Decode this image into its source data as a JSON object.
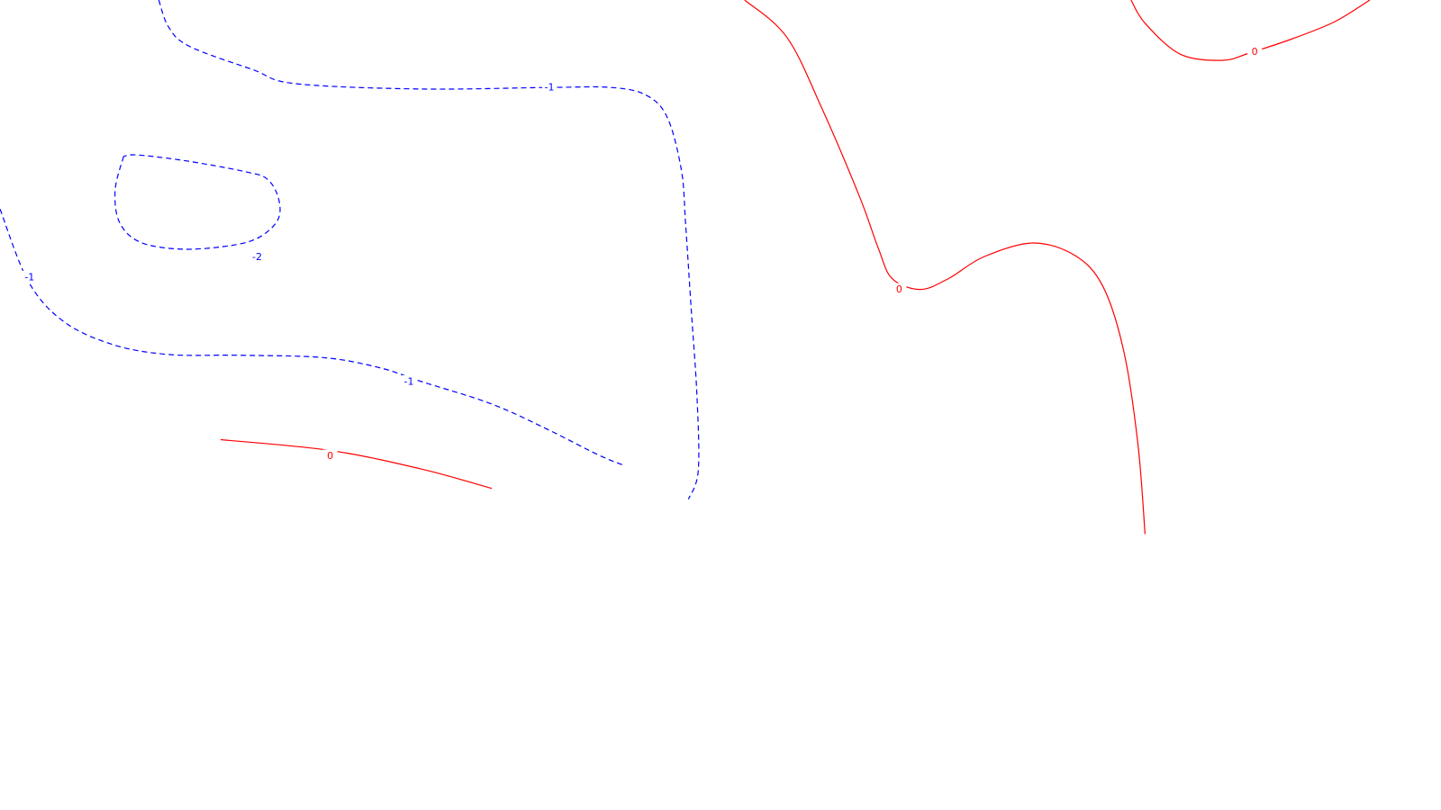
{
  "chart_data": {
    "type": "contour",
    "title": "",
    "xlabel": "",
    "ylabel": "",
    "grid": false,
    "legend": "none",
    "colors": {
      "positive": "#ff0000",
      "negative": "#0000ff"
    },
    "levels": [
      -2,
      -1,
      0
    ],
    "contours": [
      {
        "level": -1,
        "label": "-1",
        "style": "dashed",
        "color": "#0000ff",
        "points": [
          [
            0.113,
            1.0
          ],
          [
            0.12,
            0.965
          ],
          [
            0.135,
            0.94
          ],
          [
            0.18,
            0.91
          ],
          [
            0.21,
            0.892
          ],
          [
            0.3,
            0.885
          ],
          [
            0.39,
            0.887
          ],
          [
            0.435,
            0.887
          ],
          [
            0.46,
            0.877
          ],
          [
            0.475,
            0.848
          ],
          [
            0.485,
            0.78
          ],
          [
            0.488,
            0.71
          ],
          [
            0.492,
            0.6
          ],
          [
            0.496,
            0.49
          ],
          [
            0.497,
            0.392
          ],
          [
            0.49,
            0.355
          ]
        ]
      },
      {
        "level": -1,
        "label": "-1",
        "style": "dashed",
        "color": "#0000ff",
        "points": [
          [
            0.0,
            0.73
          ],
          [
            0.02,
            0.637
          ],
          [
            0.045,
            0.585
          ],
          [
            0.08,
            0.555
          ],
          [
            0.12,
            0.542
          ],
          [
            0.17,
            0.541
          ],
          [
            0.23,
            0.538
          ],
          [
            0.27,
            0.525
          ],
          [
            0.3,
            0.507
          ],
          [
            0.35,
            0.478
          ],
          [
            0.39,
            0.445
          ],
          [
            0.425,
            0.413
          ],
          [
            0.445,
            0.398
          ]
        ]
      },
      {
        "level": -2,
        "label": "-2",
        "style": "dashed",
        "color": "#0000ff",
        "points": [
          [
            0.088,
            0.798
          ],
          [
            0.082,
            0.755
          ],
          [
            0.085,
            0.713
          ],
          [
            0.1,
            0.687
          ],
          [
            0.13,
            0.678
          ],
          [
            0.165,
            0.683
          ],
          [
            0.185,
            0.694
          ],
          [
            0.198,
            0.717
          ],
          [
            0.198,
            0.745
          ],
          [
            0.19,
            0.769
          ],
          [
            0.175,
            0.778
          ],
          [
            0.14,
            0.79
          ],
          [
            0.113,
            0.797
          ],
          [
            0.095,
            0.8
          ],
          [
            0.088,
            0.798
          ]
        ]
      },
      {
        "level": 0,
        "label": "0",
        "style": "solid",
        "color": "#ff0000",
        "points": [
          [
            0.157,
            0.432
          ],
          [
            0.235,
            0.418
          ],
          [
            0.3,
            0.394
          ],
          [
            0.35,
            0.369
          ]
        ]
      },
      {
        "level": 0,
        "label": "0",
        "style": "solid",
        "color": "#ff0000",
        "points": [
          [
            0.53,
            1.0
          ],
          [
            0.56,
            0.952
          ],
          [
            0.585,
            0.86
          ],
          [
            0.612,
            0.745
          ],
          [
            0.625,
            0.68
          ],
          [
            0.635,
            0.64
          ],
          [
            0.655,
            0.626
          ],
          [
            0.675,
            0.64
          ],
          [
            0.7,
            0.668
          ],
          [
            0.735,
            0.686
          ],
          [
            0.765,
            0.67
          ],
          [
            0.785,
            0.63
          ],
          [
            0.8,
            0.545
          ],
          [
            0.81,
            0.425
          ],
          [
            0.815,
            0.31
          ]
        ]
      },
      {
        "level": 0,
        "label": "0",
        "style": "solid",
        "color": "#ff0000",
        "points": [
          [
            0.805,
            1.0
          ],
          [
            0.815,
            0.97
          ],
          [
            0.84,
            0.93
          ],
          [
            0.87,
            0.922
          ],
          [
            0.89,
            0.932
          ],
          [
            0.92,
            0.95
          ],
          [
            0.95,
            0.972
          ],
          [
            0.975,
            1.0
          ]
        ]
      }
    ],
    "labels": [
      {
        "text": "-1",
        "level": -1,
        "x": 0.391,
        "y": 0.887
      },
      {
        "text": "-1",
        "level": -1,
        "x": 0.021,
        "y": 0.642
      },
      {
        "text": "-1",
        "level": -1,
        "x": 0.291,
        "y": 0.507
      },
      {
        "text": "-2",
        "level": -2,
        "x": 0.183,
        "y": 0.668
      },
      {
        "text": "0",
        "level": 0,
        "x": 0.235,
        "y": 0.411
      },
      {
        "text": "0",
        "level": 0,
        "x": 0.64,
        "y": 0.626
      },
      {
        "text": "0",
        "level": 0,
        "x": 0.893,
        "y": 0.933
      }
    ]
  }
}
